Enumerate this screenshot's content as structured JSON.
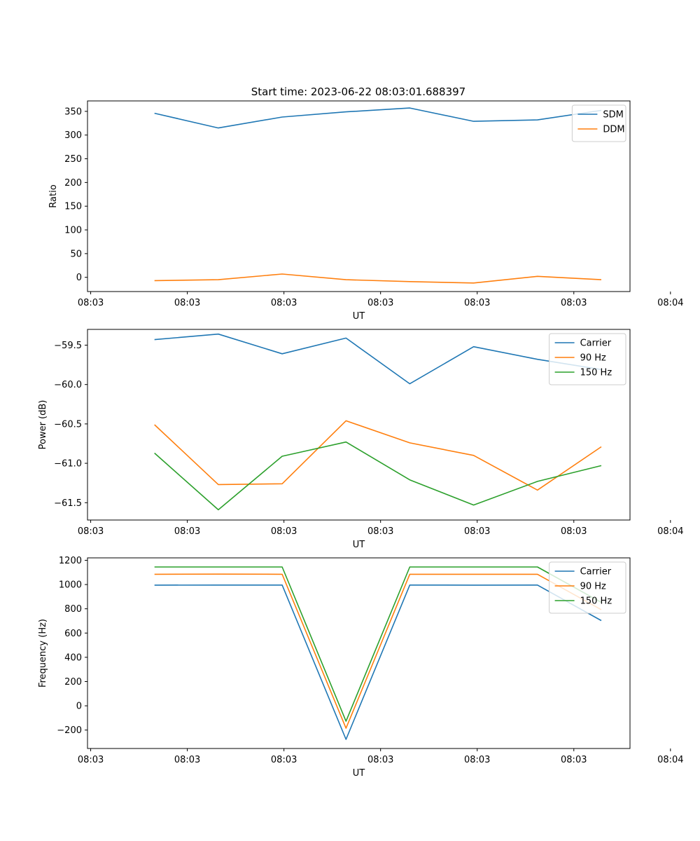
{
  "figure_title": "Start time: 2023-06-22 08:03:01.688397",
  "chart_data": [
    {
      "type": "line",
      "x_ticks": [
        "08:03",
        "08:03",
        "08:03",
        "08:03",
        "08:03",
        "08:03",
        "08:04"
      ],
      "xlabel": "UT",
      "ylabel": "Ratio",
      "ylim": [
        -30,
        372
      ],
      "y_ticks": [
        0,
        50,
        100,
        150,
        200,
        250,
        300,
        350
      ],
      "x": [
        1,
        2,
        3,
        4,
        5,
        6,
        7,
        8
      ],
      "xlim": [
        -0.05,
        8.45
      ],
      "legend_position": "top-right",
      "series": [
        {
          "name": "SDM",
          "color": "#1f77b4",
          "values": [
            346,
            315,
            338,
            349,
            357,
            329,
            332,
            352
          ]
        },
        {
          "name": "DDM",
          "color": "#ff7f0e",
          "values": [
            -7,
            -5,
            7,
            -5,
            -9,
            -12,
            2,
            -5
          ]
        }
      ]
    },
    {
      "type": "line",
      "x_ticks": [
        "08:03",
        "08:03",
        "08:03",
        "08:03",
        "08:03",
        "08:03",
        "08:04"
      ],
      "xlabel": "UT",
      "ylabel": "Power (dB)",
      "ylim": [
        -61.72,
        -59.3
      ],
      "y_ticks": [
        "-59.5",
        "-60.0",
        "-60.5",
        "-61.0",
        "-61.5"
      ],
      "y_tick_values": [
        -59.5,
        -60.0,
        -60.5,
        -61.0,
        -61.5
      ],
      "x": [
        1,
        2,
        3,
        4,
        5,
        6,
        7,
        8
      ],
      "xlim": [
        -0.05,
        8.45
      ],
      "legend_position": "top-right",
      "series": [
        {
          "name": "Carrier",
          "color": "#1f77b4",
          "values": [
            -59.43,
            -59.36,
            -59.61,
            -59.41,
            -59.99,
            -59.52,
            -59.68,
            -59.81
          ]
        },
        {
          "name": "90 Hz",
          "color": "#ff7f0e",
          "values": [
            -60.51,
            -61.27,
            -61.26,
            -60.46,
            -60.74,
            -60.9,
            -61.34,
            -60.79
          ]
        },
        {
          "name": "150 Hz",
          "color": "#2ca02c",
          "values": [
            -60.87,
            -61.59,
            -60.91,
            -60.73,
            -61.21,
            -61.53,
            -61.23,
            -61.03
          ]
        }
      ]
    },
    {
      "type": "line",
      "x_ticks": [
        "08:03",
        "08:03",
        "08:03",
        "08:03",
        "08:03",
        "08:03",
        "08:04"
      ],
      "xlabel": "UT",
      "ylabel": "Frequency (Hz)",
      "ylim": [
        -352,
        1220
      ],
      "y_ticks": [
        -200,
        0,
        200,
        400,
        600,
        800,
        1000,
        1200
      ],
      "x": [
        1,
        2,
        3,
        4,
        5,
        6,
        7,
        8
      ],
      "xlim": [
        -0.05,
        8.45
      ],
      "legend_position": "top-right",
      "series": [
        {
          "name": "Carrier",
          "color": "#1f77b4",
          "values": [
            995,
            996,
            996,
            -277,
            996,
            995,
            996,
            703
          ]
        },
        {
          "name": "90 Hz",
          "color": "#ff7f0e",
          "values": [
            1085,
            1086,
            1085,
            -185,
            1085,
            1085,
            1085,
            793
          ]
        },
        {
          "name": "150 Hz",
          "color": "#2ca02c",
          "values": [
            1145,
            1145,
            1145,
            -127,
            1145,
            1145,
            1145,
            853
          ]
        }
      ]
    }
  ]
}
